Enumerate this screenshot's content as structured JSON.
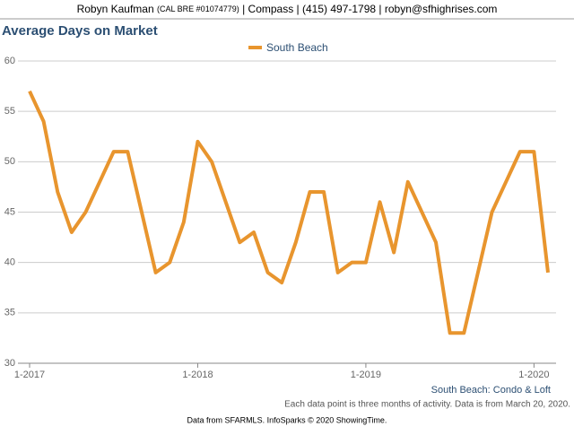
{
  "header": {
    "name": "Robyn Kaufman",
    "license": "(CAL BRE #01074779)",
    "contact": "| Compass | (415) 497-1798 | robyn@sfhighrises.com"
  },
  "chart_data": {
    "type": "line",
    "title": "Average Days on Market",
    "categories": [
      "1-2017",
      null,
      null,
      null,
      null,
      null,
      null,
      null,
      null,
      null,
      null,
      null,
      "1-2018",
      null,
      null,
      null,
      null,
      null,
      null,
      null,
      null,
      null,
      null,
      null,
      "1-2019",
      null,
      null,
      null,
      null,
      null,
      null,
      null,
      null,
      null,
      null,
      null,
      "1-2020",
      null
    ],
    "series": [
      {
        "name": "South Beach",
        "color": "#e8952e",
        "values": [
          57,
          54,
          47,
          43,
          45,
          48,
          51,
          51,
          45,
          39,
          40,
          44,
          52,
          50,
          46,
          42,
          43,
          39,
          38,
          42,
          47,
          47,
          39,
          40,
          40,
          46,
          41,
          48,
          45,
          42,
          33,
          33,
          39,
          45,
          48,
          51,
          51,
          39
        ]
      }
    ],
    "ylim": [
      30,
      60
    ],
    "yticks": [
      30,
      35,
      40,
      45,
      50,
      55,
      60
    ],
    "grid": true,
    "legend": "top",
    "annotation": "South Beach: Condo & Loft",
    "note": "Each data point is three months of activity. Data is from March 20, 2020."
  },
  "footer": {
    "source": "Data from SFARMLS. InfoSparks © 2020 ShowingTime."
  }
}
